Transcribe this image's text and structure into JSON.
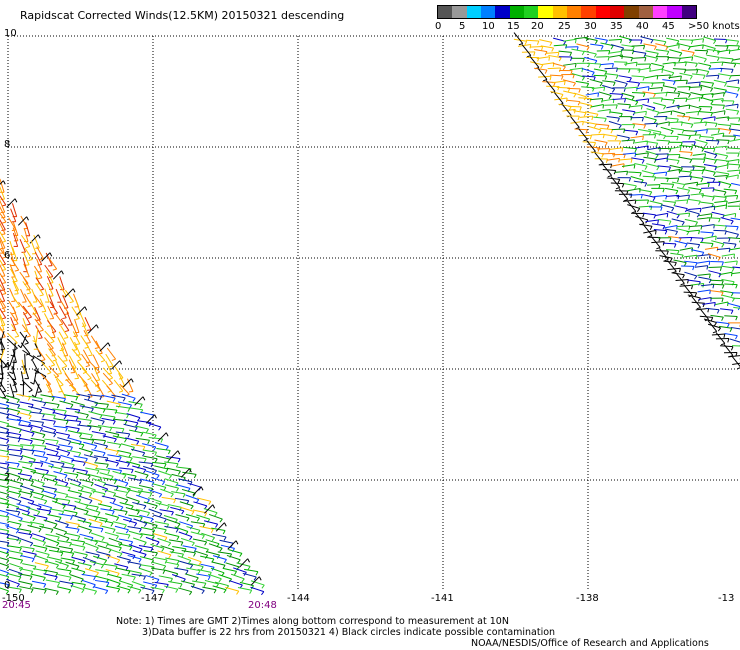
{
  "title": "Rapidscat Corrected Winds(12.5KM) 20150321 descending",
  "legend": {
    "colors": [
      "#555555",
      "#999999",
      "#00cfff",
      "#0080ff",
      "#0000c8",
      "#00b000",
      "#20d020",
      "#ffff00",
      "#ffc000",
      "#ff8000",
      "#ff4000",
      "#ff0000",
      "#e00000",
      "#804000",
      "#a06040",
      "#ff40ff",
      "#c000ff",
      "#400080"
    ],
    "labels": [
      "0",
      "5",
      "10",
      "15",
      "20",
      "25",
      "30",
      "35",
      "40",
      "45",
      ">50 knots"
    ]
  },
  "axes": {
    "y_ticks": [
      "10",
      "8",
      "6",
      "4",
      "2",
      "0"
    ],
    "x_ticks": [
      "-150",
      "-147",
      "-144",
      "-141",
      "-138",
      "-13"
    ]
  },
  "times": {
    "start": "20:45",
    "end": "20:48"
  },
  "notes": [
    "Note: 1) Times are GMT 2)Times along bottom correspond to measurement at 10N",
    "3)Data buffer is 22 hrs from 20150321 4) Black circles indicate possible contamination",
    "NOAA/NESDIS/Office of Research and Applications"
  ]
}
